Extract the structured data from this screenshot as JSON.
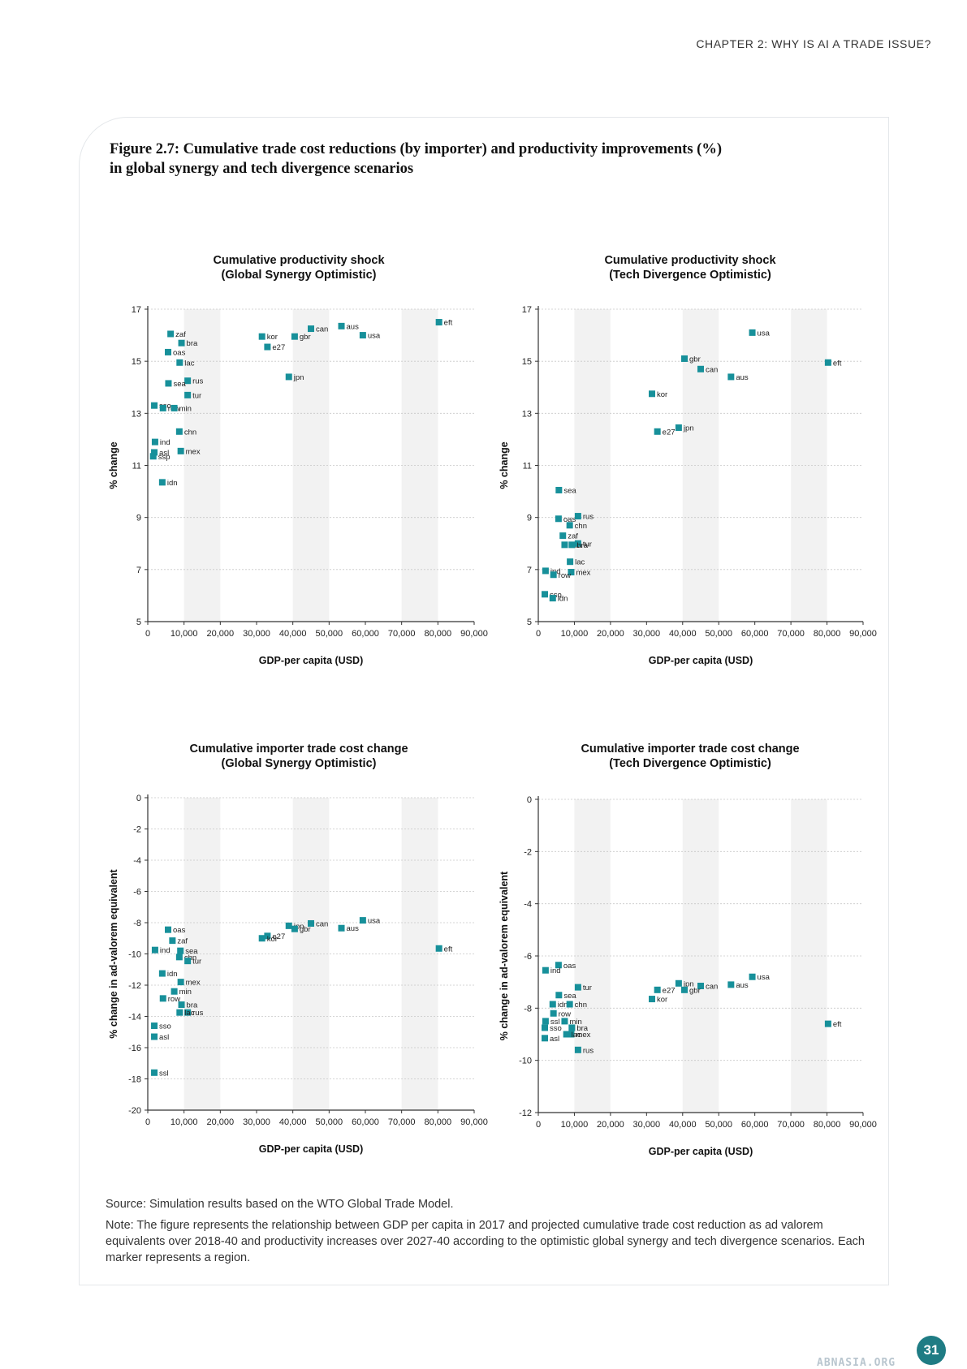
{
  "header": {
    "running_head": "CHAPTER 2: WHY IS AI A TRADE ISSUE?"
  },
  "figure": {
    "title_line1": "Figure 2.7: Cumulative trade cost reductions (by importer) and productivity improvements (%)",
    "title_line2": "in global synergy and tech divergence scenarios"
  },
  "colors": {
    "marker": "#17909a",
    "band": "#f2f2f2",
    "grid": "#c8c8c8"
  },
  "chart_data": [
    {
      "type": "scatter",
      "title": [
        "Cumulative productivity shock",
        "(Global Synergy Optimistic)"
      ],
      "xlabel": "GDP-per capita (USD)",
      "ylabel": "% change",
      "xlim": [
        0,
        90000
      ],
      "ylim": [
        5,
        17
      ],
      "yticks": [
        5,
        7,
        9,
        11,
        13,
        15,
        17
      ],
      "xticks": [
        0,
        10000,
        20000,
        30000,
        40000,
        50000,
        60000,
        70000,
        80000,
        90000
      ],
      "xtick_labels": [
        "0",
        "10,000",
        "20,000",
        "30,000",
        "40,000",
        "50,000",
        "60,000",
        "70,000",
        "80,000",
        "90,000"
      ],
      "points": [
        {
          "label": "eft",
          "x": 80300,
          "y": 16.5
        },
        {
          "label": "aus",
          "x": 53400,
          "y": 16.35
        },
        {
          "label": "can",
          "x": 45000,
          "y": 16.25
        },
        {
          "label": "gbr",
          "x": 40500,
          "y": 15.95
        },
        {
          "label": "kor",
          "x": 31500,
          "y": 15.95
        },
        {
          "label": "e27",
          "x": 33000,
          "y": 15.55
        },
        {
          "label": "usa",
          "x": 59300,
          "y": 16.0
        },
        {
          "label": "jpn",
          "x": 38900,
          "y": 14.4
        },
        {
          "label": "zaf",
          "x": 6300,
          "y": 16.05
        },
        {
          "label": "bra",
          "x": 9300,
          "y": 15.7
        },
        {
          "label": "oas",
          "x": 5600,
          "y": 15.35
        },
        {
          "label": "lac",
          "x": 8800,
          "y": 14.95
        },
        {
          "label": "rus",
          "x": 11000,
          "y": 14.25
        },
        {
          "label": "sea",
          "x": 5700,
          "y": 14.15
        },
        {
          "label": "tur",
          "x": 11000,
          "y": 13.7
        },
        {
          "label": "sso",
          "x": 1800,
          "y": 13.3
        },
        {
          "label": "row",
          "x": 4200,
          "y": 13.2
        },
        {
          "label": "min",
          "x": 7300,
          "y": 13.2
        },
        {
          "label": "chn",
          "x": 8700,
          "y": 12.3
        },
        {
          "label": "ind",
          "x": 2000,
          "y": 11.9
        },
        {
          "label": "asl",
          "x": 1800,
          "y": 11.5
        },
        {
          "label": "ssp",
          "x": 1500,
          "y": 11.35
        },
        {
          "label": "mex",
          "x": 9100,
          "y": 11.55
        },
        {
          "label": "idn",
          "x": 4000,
          "y": 10.35
        }
      ]
    },
    {
      "type": "scatter",
      "title": [
        "Cumulative productivity shock",
        "(Tech Divergence Optimistic)"
      ],
      "xlabel": "GDP-per capita (USD)",
      "ylabel": "% change",
      "xlim": [
        0,
        90000
      ],
      "ylim": [
        5,
        17
      ],
      "yticks": [
        5,
        7,
        9,
        11,
        13,
        15,
        17
      ],
      "xticks": [
        0,
        10000,
        20000,
        30000,
        40000,
        50000,
        60000,
        70000,
        80000,
        90000
      ],
      "xtick_labels": [
        "0",
        "10,000",
        "20,000",
        "30,000",
        "40,000",
        "50,000",
        "60,000",
        "70,000",
        "80,000",
        "90,000"
      ],
      "points": [
        {
          "label": "usa",
          "x": 59300,
          "y": 16.1
        },
        {
          "label": "gbr",
          "x": 40500,
          "y": 15.1
        },
        {
          "label": "can",
          "x": 45000,
          "y": 14.7
        },
        {
          "label": "aus",
          "x": 53400,
          "y": 14.4
        },
        {
          "label": "eft",
          "x": 80300,
          "y": 14.95
        },
        {
          "label": "kor",
          "x": 31500,
          "y": 13.75
        },
        {
          "label": "jpn",
          "x": 38900,
          "y": 12.45
        },
        {
          "label": "e27",
          "x": 33000,
          "y": 12.3
        },
        {
          "label": "sea",
          "x": 5700,
          "y": 10.05
        },
        {
          "label": "oas",
          "x": 5600,
          "y": 8.95
        },
        {
          "label": "rus",
          "x": 11000,
          "y": 9.05
        },
        {
          "label": "chn",
          "x": 8700,
          "y": 8.7
        },
        {
          "label": "zaf",
          "x": 6800,
          "y": 8.3
        },
        {
          "label": "min",
          "x": 7300,
          "y": 7.95
        },
        {
          "label": "tur",
          "x": 11000,
          "y": 8.0
        },
        {
          "label": "bra",
          "x": 9300,
          "y": 7.95
        },
        {
          "label": "lac",
          "x": 8800,
          "y": 7.3
        },
        {
          "label": "ind",
          "x": 2000,
          "y": 6.95
        },
        {
          "label": "mex",
          "x": 9100,
          "y": 6.9
        },
        {
          "label": "row",
          "x": 4200,
          "y": 6.8
        },
        {
          "label": "sso",
          "x": 1800,
          "y": 6.05
        },
        {
          "label": "idn",
          "x": 4000,
          "y": 5.9
        }
      ]
    },
    {
      "type": "scatter",
      "title": [
        "Cumulative importer trade cost change",
        "(Global Synergy Optimistic)"
      ],
      "xlabel": "GDP-per capita (USD)",
      "ylabel": "% change in ad-valorem equivalent",
      "xlim": [
        0,
        90000
      ],
      "ylim": [
        -20,
        0
      ],
      "yticks": [
        -20,
        -18,
        -16,
        -14,
        -12,
        -10,
        -8,
        -6,
        -4,
        -2,
        0
      ],
      "xticks": [
        0,
        10000,
        20000,
        30000,
        40000,
        50000,
        60000,
        70000,
        80000,
        90000
      ],
      "xtick_labels": [
        "0",
        "10,000",
        "20,000",
        "30,000",
        "40,000",
        "50,000",
        "60,000",
        "70,000",
        "80,000",
        "90,000"
      ],
      "points": [
        {
          "label": "jpn",
          "x": 38900,
          "y": -8.2
        },
        {
          "label": "can",
          "x": 45000,
          "y": -8.05
        },
        {
          "label": "usa",
          "x": 59300,
          "y": -7.85
        },
        {
          "label": "aus",
          "x": 53400,
          "y": -8.35
        },
        {
          "label": "e27",
          "x": 33000,
          "y": -8.85
        },
        {
          "label": "gbr",
          "x": 40500,
          "y": -8.4
        },
        {
          "label": "kor",
          "x": 31500,
          "y": -9.0
        },
        {
          "label": "eft",
          "x": 80300,
          "y": -9.65
        },
        {
          "label": "oas",
          "x": 5600,
          "y": -8.45
        },
        {
          "label": "zaf",
          "x": 6800,
          "y": -9.15
        },
        {
          "label": "ind",
          "x": 2000,
          "y": -9.75
        },
        {
          "label": "sea",
          "x": 9000,
          "y": -9.8
        },
        {
          "label": "chn",
          "x": 8700,
          "y": -10.2
        },
        {
          "label": "tur",
          "x": 11000,
          "y": -10.45
        },
        {
          "label": "idn",
          "x": 4000,
          "y": -11.25
        },
        {
          "label": "mex",
          "x": 9100,
          "y": -11.8
        },
        {
          "label": "min",
          "x": 7300,
          "y": -12.4
        },
        {
          "label": "row",
          "x": 4200,
          "y": -12.85
        },
        {
          "label": "bra",
          "x": 9300,
          "y": -13.25
        },
        {
          "label": "rus",
          "x": 11000,
          "y": -13.75
        },
        {
          "label": "lac",
          "x": 8800,
          "y": -13.75
        },
        {
          "label": "sso",
          "x": 1800,
          "y": -14.6
        },
        {
          "label": "asl",
          "x": 1800,
          "y": -15.3
        },
        {
          "label": "ssl",
          "x": 1800,
          "y": -17.6
        }
      ]
    },
    {
      "type": "scatter",
      "title": [
        "Cumulative importer trade cost change",
        "(Tech Divergence Optimistic)"
      ],
      "xlabel": "GDP-per capita (USD)",
      "ylabel": "% change in ad-valorem equivalent",
      "xlim": [
        0,
        90000
      ],
      "ylim": [
        -12,
        0
      ],
      "yticks": [
        -12,
        -10,
        -8,
        -6,
        -4,
        -2,
        0
      ],
      "xticks": [
        0,
        10000,
        20000,
        30000,
        40000,
        50000,
        60000,
        70000,
        80000,
        90000
      ],
      "xtick_labels": [
        "0",
        "10,000",
        "20,000",
        "30,000",
        "40,000",
        "50,000",
        "60,000",
        "70,000",
        "80,000",
        "90,000"
      ],
      "points": [
        {
          "label": "usa",
          "x": 59300,
          "y": -6.8
        },
        {
          "label": "aus",
          "x": 53400,
          "y": -7.1
        },
        {
          "label": "can",
          "x": 45000,
          "y": -7.15
        },
        {
          "label": "jpn",
          "x": 38900,
          "y": -7.05
        },
        {
          "label": "e27",
          "x": 33000,
          "y": -7.3
        },
        {
          "label": "gbr",
          "x": 40500,
          "y": -7.3
        },
        {
          "label": "kor",
          "x": 31500,
          "y": -7.65
        },
        {
          "label": "eft",
          "x": 80300,
          "y": -8.6
        },
        {
          "label": "oas",
          "x": 5600,
          "y": -6.35
        },
        {
          "label": "ind",
          "x": 2000,
          "y": -6.55
        },
        {
          "label": "tur",
          "x": 11000,
          "y": -7.2
        },
        {
          "label": "sea",
          "x": 5700,
          "y": -7.5
        },
        {
          "label": "idn",
          "x": 4000,
          "y": -7.85
        },
        {
          "label": "chn",
          "x": 8700,
          "y": -7.85
        },
        {
          "label": "row",
          "x": 4200,
          "y": -8.2
        },
        {
          "label": "ssl",
          "x": 2000,
          "y": -8.5
        },
        {
          "label": "min",
          "x": 7300,
          "y": -8.5
        },
        {
          "label": "sso",
          "x": 1800,
          "y": -8.75
        },
        {
          "label": "bra",
          "x": 9300,
          "y": -8.75
        },
        {
          "label": "mex",
          "x": 9100,
          "y": -9.0
        },
        {
          "label": "lac",
          "x": 7800,
          "y": -9.0
        },
        {
          "label": "asl",
          "x": 1800,
          "y": -9.15
        },
        {
          "label": "rus",
          "x": 11000,
          "y": -9.6
        }
      ]
    }
  ],
  "footer": {
    "source": "Source: Simulation results based on the WTO Global Trade Model.",
    "note": "Note: The figure represents the relationship between GDP per capita in 2017 and projected cumulative trade cost reduction as ad valorem equivalents over 2018-40 and productivity increases over 2027-40 according to the optimistic global synergy and tech divergence scenarios. Each marker represents a region.",
    "page_number": "31",
    "watermark": "ABNASIA.ORG"
  }
}
